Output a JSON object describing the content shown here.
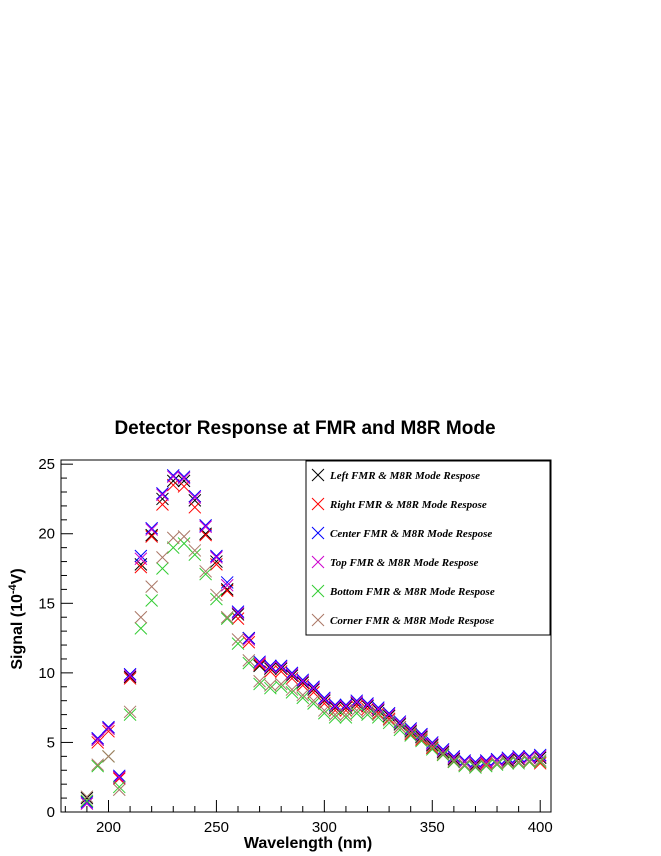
{
  "chart_data": {
    "type": "scatter",
    "title": "Detector Response at FMR and M8R Mode",
    "xlabel": "Wavelength (nm)",
    "ylabel_main": "Signal (10",
    "ylabel_sup": "-4",
    "ylabel_end": "V)",
    "xlim": [
      178,
      405
    ],
    "ylim": [
      0,
      25.3
    ],
    "xticks": [
      "200",
      "250",
      "300",
      "350",
      "400"
    ],
    "yticks": [
      "0",
      "5",
      "10",
      "15",
      "20",
      "25"
    ],
    "marker": "x",
    "legend_position": "top-right",
    "grid": false,
    "x": [
      190,
      195,
      200,
      205,
      210,
      215,
      220,
      225,
      230,
      235,
      240,
      245,
      250,
      255,
      260,
      265,
      270,
      275,
      280,
      285,
      290,
      295,
      300,
      305,
      310,
      315,
      320,
      325,
      330,
      335,
      340,
      345,
      350,
      355,
      360,
      365,
      370,
      375,
      380,
      385,
      390,
      395,
      400
    ],
    "series": [
      {
        "name": "Left FMR & M8R Mode Respose",
        "color": "#000000",
        "values": [
          1.0,
          5.2,
          6.0,
          2.5,
          9.7,
          17.8,
          19.9,
          22.5,
          23.8,
          23.8,
          22.4,
          20.0,
          18.0,
          16.0,
          14.2,
          12.5,
          10.5,
          10.3,
          10.3,
          9.8,
          9.3,
          8.8,
          8.0,
          7.5,
          7.5,
          7.8,
          7.6,
          7.3,
          6.9,
          6.3,
          5.8,
          5.4,
          4.8,
          4.3,
          3.8,
          3.6,
          3.4,
          3.6,
          3.7,
          3.7,
          3.8,
          3.9,
          3.9
        ]
      },
      {
        "name": "Right FMR & M8R Mode Respose",
        "color": "#ff0000",
        "values": [
          0.8,
          5.0,
          5.8,
          2.4,
          9.6,
          17.6,
          19.8,
          22.1,
          23.5,
          23.4,
          21.9,
          19.9,
          17.8,
          15.9,
          13.9,
          12.2,
          10.6,
          10.1,
          10.1,
          9.6,
          9.1,
          8.6,
          7.8,
          7.3,
          7.3,
          7.6,
          7.4,
          7.1,
          6.7,
          6.1,
          5.6,
          5.2,
          4.6,
          4.1,
          3.6,
          3.4,
          3.3,
          3.5,
          3.5,
          3.5,
          3.6,
          3.6,
          3.5
        ]
      },
      {
        "name": "Center FMR & M8R Mode Respose",
        "color": "#0000ff",
        "values": [
          0.7,
          5.3,
          6.1,
          2.6,
          9.9,
          18.4,
          20.4,
          22.9,
          24.2,
          24.1,
          22.7,
          20.6,
          18.4,
          16.5,
          14.4,
          12.5,
          10.8,
          10.5,
          10.5,
          10.0,
          9.5,
          9.0,
          8.2,
          7.7,
          7.7,
          8.0,
          7.8,
          7.5,
          7.1,
          6.5,
          6.0,
          5.6,
          5.0,
          4.5,
          4.0,
          3.7,
          3.6,
          3.7,
          3.8,
          3.9,
          4.0,
          4.0,
          4.1
        ]
      },
      {
        "name": "Top FMR & M8R Mode Respose",
        "color": "#cc00cc",
        "values": [
          0.6,
          5.2,
          6.0,
          2.5,
          9.8,
          18.2,
          20.3,
          22.8,
          24.1,
          24.0,
          22.6,
          20.5,
          18.3,
          16.3,
          14.3,
          12.4,
          10.7,
          10.4,
          10.4,
          9.9,
          9.4,
          8.9,
          8.1,
          7.6,
          7.6,
          7.9,
          7.7,
          7.4,
          7.0,
          6.4,
          5.9,
          5.5,
          4.9,
          4.4,
          3.9,
          3.6,
          3.5,
          3.6,
          3.7,
          3.8,
          3.9,
          3.9,
          4.0
        ]
      },
      {
        "name": "Bottom FMR & M8R Mode Respose",
        "color": "#33cc33",
        "values": [
          0.8,
          3.3,
          4.0,
          1.8,
          7.0,
          13.2,
          15.2,
          17.5,
          19.0,
          19.3,
          18.5,
          17.1,
          15.3,
          13.9,
          12.1,
          10.7,
          9.2,
          8.9,
          9.0,
          8.6,
          8.2,
          7.8,
          7.1,
          6.8,
          6.8,
          7.1,
          7.0,
          6.8,
          6.4,
          5.9,
          5.5,
          5.1,
          4.5,
          4.1,
          3.6,
          3.3,
          3.2,
          3.3,
          3.4,
          3.5,
          3.5,
          3.6,
          3.6
        ]
      },
      {
        "name": "Corner FMR & M8R Mode Respose",
        "color": "#aa7766",
        "values": [
          1.1,
          3.4,
          4.0,
          1.6,
          7.2,
          14.0,
          16.2,
          18.3,
          19.7,
          19.8,
          18.8,
          17.3,
          15.6,
          14.0,
          12.4,
          10.9,
          9.4,
          9.1,
          9.2,
          8.8,
          8.4,
          8.0,
          7.3,
          7.0,
          7.0,
          7.3,
          7.2,
          7.0,
          6.6,
          6.1,
          5.7,
          5.3,
          4.7,
          4.2,
          3.7,
          3.4,
          3.3,
          3.4,
          3.5,
          3.6,
          3.6,
          3.7,
          3.7
        ]
      }
    ]
  }
}
